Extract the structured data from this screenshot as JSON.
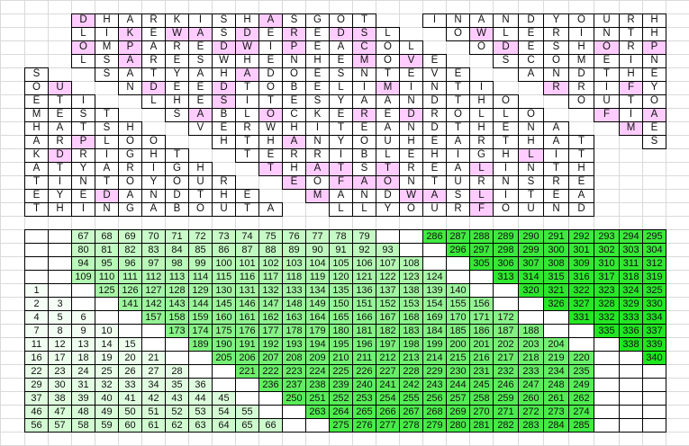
{
  "colors": {
    "highlight": "#ffccff",
    "gridline": "#dadada",
    "border": "#000000",
    "scale_low": "#f6fff6",
    "scale_high": "#1fe61f"
  },
  "top_grid": {
    "rows": [
      "                             ",
      "   DHARKISHASGOT  INANDYOURH ",
      "   LIKEWASDEREDSL  OWLERINTH ",
      "   OMPAREDWIPEACOL  ODESHORP ",
      "   LSARESWHENHEMOVE  SCOMEIN ",
      " S  SATYAHADOESNTEVE  ANDTHE ",
      " OU  NDEEDTOBELIMINTI  RRIFY ",
      " ETI  LHESITESYAANDTHO  OUTO ",
      " MEST  SABLOCKEREDROLLO  FIA ",
      " HATSH  VERWHITEANDTHENA  ME ",
      " ARPLOO  HTHANYOUHEARTHAT  S ",
      " KDRIGHT  TERRIBLEHIGHLIT    ",
      " ATYARIGH  THATSTREALINTH    ",
      " TINTOYOUR  EOFAONTURNSRE    ",
      " EYEDANDTHE  MANDWASLITEA    ",
      " THINGABOUTA  LLYOURFOUND    "
    ],
    "highlighted": [
      [],
      [
        3,
        11
      ],
      [
        5,
        7,
        8,
        10,
        12,
        14,
        15,
        20
      ],
      [
        3,
        5,
        9,
        10,
        12,
        15,
        21,
        25,
        27
      ],
      [
        5,
        15,
        17
      ],
      [
        10
      ],
      [
        2,
        6,
        9,
        16,
        23,
        26
      ],
      [
        9
      ],
      [
        8,
        11,
        15,
        17,
        25,
        27
      ],
      [
        26
      ],
      [
        3,
        12
      ],
      [
        2,
        22
      ],
      [
        11,
        13,
        14,
        16,
        20
      ],
      [
        12,
        14,
        15,
        16
      ],
      [
        4,
        13,
        17,
        18,
        20
      ],
      [
        20
      ]
    ]
  },
  "number_grid": {
    "rows": [
      [
        null,
        null,
        67,
        68,
        69,
        70,
        71,
        72,
        73,
        74,
        75,
        76,
        77,
        78,
        79,
        null,
        null,
        286,
        287,
        288,
        289,
        290,
        291,
        292,
        293,
        294,
        295
      ],
      [
        null,
        null,
        80,
        81,
        82,
        83,
        84,
        85,
        86,
        87,
        88,
        89,
        90,
        91,
        92,
        93,
        null,
        null,
        296,
        297,
        298,
        299,
        300,
        301,
        302,
        303,
        304
      ],
      [
        null,
        null,
        94,
        95,
        96,
        97,
        98,
        99,
        100,
        101,
        102,
        103,
        104,
        105,
        106,
        107,
        108,
        null,
        null,
        305,
        306,
        307,
        308,
        309,
        310,
        311,
        312
      ],
      [
        null,
        null,
        109,
        110,
        111,
        112,
        113,
        114,
        115,
        116,
        117,
        118,
        119,
        120,
        121,
        122,
        123,
        124,
        null,
        null,
        313,
        314,
        315,
        316,
        317,
        318,
        319
      ],
      [
        1,
        null,
        null,
        125,
        126,
        127,
        128,
        129,
        130,
        131,
        132,
        133,
        134,
        135,
        136,
        137,
        138,
        139,
        140,
        null,
        null,
        320,
        321,
        322,
        323,
        324,
        325
      ],
      [
        2,
        3,
        null,
        null,
        141,
        142,
        143,
        144,
        145,
        146,
        147,
        148,
        149,
        150,
        151,
        152,
        153,
        154,
        155,
        156,
        null,
        null,
        326,
        327,
        328,
        329,
        330
      ],
      [
        4,
        5,
        6,
        null,
        null,
        157,
        158,
        159,
        160,
        161,
        162,
        163,
        164,
        165,
        166,
        167,
        168,
        169,
        170,
        171,
        172,
        null,
        null,
        331,
        332,
        333,
        334
      ],
      [
        7,
        8,
        9,
        10,
        null,
        null,
        173,
        174,
        175,
        176,
        177,
        178,
        179,
        180,
        181,
        182,
        183,
        184,
        185,
        186,
        187,
        188,
        null,
        null,
        335,
        336,
        337
      ],
      [
        11,
        12,
        13,
        14,
        15,
        null,
        null,
        189,
        190,
        191,
        192,
        193,
        194,
        195,
        196,
        197,
        198,
        199,
        200,
        201,
        202,
        203,
        204,
        null,
        null,
        338,
        339
      ],
      [
        16,
        17,
        18,
        19,
        20,
        21,
        null,
        null,
        205,
        206,
        207,
        208,
        209,
        210,
        211,
        212,
        213,
        214,
        215,
        216,
        217,
        218,
        219,
        220,
        null,
        null,
        340
      ],
      [
        22,
        23,
        24,
        25,
        26,
        27,
        28,
        null,
        null,
        221,
        222,
        223,
        224,
        225,
        226,
        227,
        228,
        229,
        230,
        231,
        232,
        233,
        234,
        235,
        null,
        null,
        null
      ],
      [
        29,
        30,
        31,
        32,
        33,
        34,
        35,
        36,
        null,
        null,
        236,
        237,
        238,
        239,
        240,
        241,
        242,
        243,
        244,
        245,
        246,
        247,
        248,
        249,
        null,
        null,
        null
      ],
      [
        37,
        38,
        39,
        40,
        41,
        42,
        43,
        44,
        45,
        null,
        null,
        250,
        251,
        252,
        253,
        254,
        255,
        256,
        257,
        258,
        259,
        260,
        261,
        262,
        null,
        null,
        null
      ],
      [
        46,
        47,
        48,
        49,
        50,
        51,
        52,
        53,
        54,
        55,
        null,
        null,
        263,
        264,
        265,
        266,
        267,
        268,
        269,
        270,
        271,
        272,
        273,
        274,
        null,
        null,
        null
      ],
      [
        56,
        57,
        58,
        59,
        60,
        61,
        62,
        63,
        64,
        65,
        66,
        null,
        null,
        275,
        276,
        277,
        278,
        279,
        280,
        281,
        282,
        283,
        284,
        285,
        null,
        null,
        null
      ]
    ]
  }
}
